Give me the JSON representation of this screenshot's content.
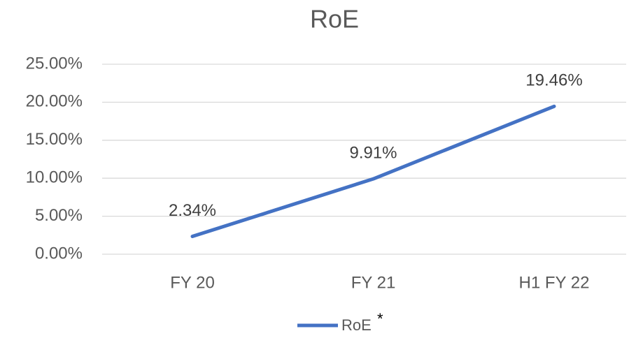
{
  "chart_data": {
    "type": "line",
    "title": "RoE",
    "categories": [
      "FY 20",
      "FY 21",
      "H1 FY 22"
    ],
    "series": [
      {
        "name": "RoE",
        "color": "#4472c4",
        "values": [
          2.34,
          9.91,
          19.46
        ],
        "value_labels": [
          "2.34%",
          "9.91%",
          "19.46%"
        ]
      }
    ],
    "legend_note": "*",
    "ylim": [
      0,
      25
    ],
    "yticks": [
      {
        "value": 0,
        "label": "0.00%"
      },
      {
        "value": 5,
        "label": "5.00%"
      },
      {
        "value": 10,
        "label": "10.00%"
      },
      {
        "value": 15,
        "label": "15.00%"
      },
      {
        "value": 20,
        "label": "20.00%"
      },
      {
        "value": 25,
        "label": "25.00%"
      }
    ],
    "grid": true,
    "legend": "bottom"
  }
}
